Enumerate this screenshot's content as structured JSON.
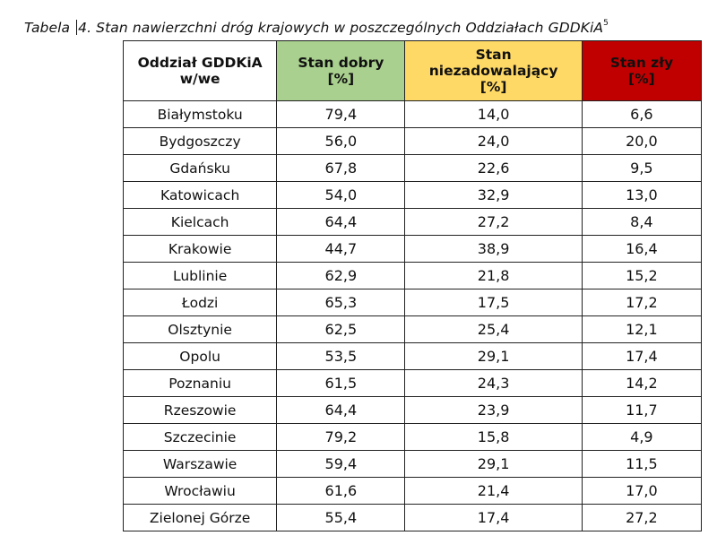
{
  "caption": {
    "prefix": "Tabela ",
    "text": "4. Stan nawierzchni dróg krajowych w poszczególnych Oddziałach GDDKiA",
    "footnote": "5"
  },
  "table": {
    "headers": [
      {
        "line1": "Oddział GDDKiA",
        "line2": "w/we"
      },
      {
        "line1": "Stan dobry",
        "line2": "[%]"
      },
      {
        "line1": "Stan",
        "line2": "niezadowalający",
        "line3": "[%]"
      },
      {
        "line1": "Stan zły",
        "line2": "[%]"
      }
    ],
    "header_colors": [
      "#ffffff",
      "#a9d08e",
      "#ffd966",
      "#c00000"
    ],
    "rows": [
      [
        "Białymstoku",
        "79,4",
        "14,0",
        "6,6"
      ],
      [
        "Bydgoszczy",
        "56,0",
        "24,0",
        "20,0"
      ],
      [
        "Gdańsku",
        "67,8",
        "22,6",
        "9,5"
      ],
      [
        "Katowicach",
        "54,0",
        "32,9",
        "13,0"
      ],
      [
        "Kielcach",
        "64,4",
        "27,2",
        "8,4"
      ],
      [
        "Krakowie",
        "44,7",
        "38,9",
        "16,4"
      ],
      [
        "Lublinie",
        "62,9",
        "21,8",
        "15,2"
      ],
      [
        "Łodzi",
        "65,3",
        "17,5",
        "17,2"
      ],
      [
        "Olsztynie",
        "62,5",
        "25,4",
        "12,1"
      ],
      [
        "Opolu",
        "53,5",
        "29,1",
        "17,4"
      ],
      [
        "Poznaniu",
        "61,5",
        "24,3",
        "14,2"
      ],
      [
        "Rzeszowie",
        "64,4",
        "23,9",
        "11,7"
      ],
      [
        "Szczecinie",
        "79,2",
        "15,8",
        "4,9"
      ],
      [
        "Warszawie",
        "59,4",
        "29,1",
        "11,5"
      ],
      [
        "Wrocławiu",
        "61,6",
        "21,4",
        "17,0"
      ],
      [
        "Zielonej Górze",
        "55,4",
        "17,4",
        "27,2"
      ]
    ]
  }
}
